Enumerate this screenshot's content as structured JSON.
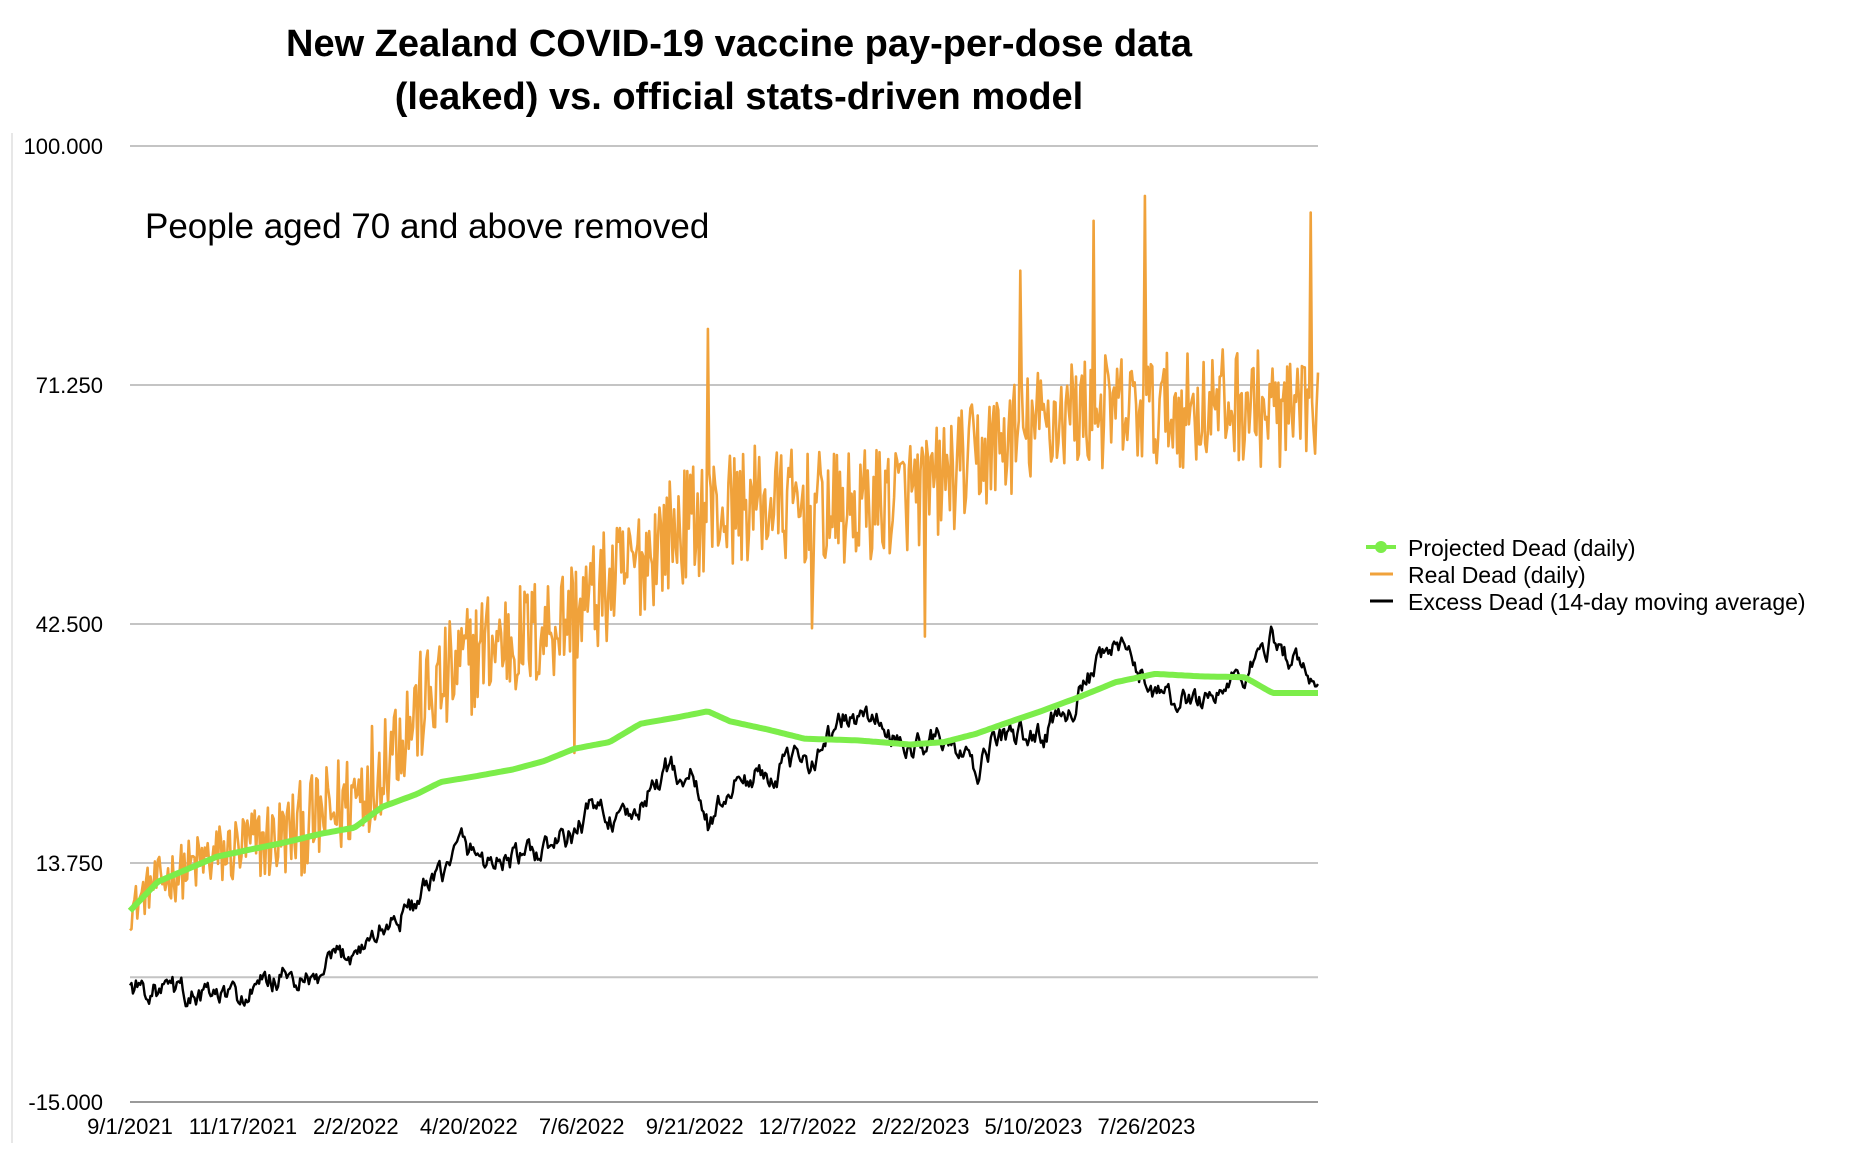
{
  "chart_data": {
    "type": "line",
    "title_lines": [
      "New Zealand COVID-19 vaccine pay-per-dose data",
      "(leaked) vs. official stats-driven model"
    ],
    "subtitle": "People aged 70 and above removed",
    "xlabel": "",
    "ylabel": "",
    "x_range": [
      "2021-09-01",
      "2023-11-20"
    ],
    "ylim": [
      -15,
      100
    ],
    "y_ticks": [
      -15,
      13.75,
      42.5,
      71.25,
      100
    ],
    "y_tick_labels": [
      "-15.000",
      "13.750",
      "42.500",
      "71.250",
      "100.000"
    ],
    "extra_gridline": 0,
    "x_tick_dates": [
      "2021-09-01",
      "2021-11-17",
      "2022-02-02",
      "2022-04-20",
      "2022-07-06",
      "2022-09-21",
      "2022-12-07",
      "2023-02-22",
      "2023-05-10",
      "2023-07-26"
    ],
    "x_tick_labels": [
      "9/1/2021",
      "11/17/2021",
      "2/2/2022",
      "4/20/2022",
      "7/6/2022",
      "9/21/2022",
      "12/7/2022",
      "2/22/2023",
      "5/10/2023",
      "7/26/2023"
    ],
    "grid": true,
    "legend_position": "right",
    "series": [
      {
        "name": "Projected Dead (daily)",
        "color": "#7ced4a",
        "style": "line-with-markers",
        "points": [
          [
            "2021-09-01",
            8
          ],
          [
            "2021-09-20",
            11.5
          ],
          [
            "2021-10-10",
            13
          ],
          [
            "2021-10-30",
            14.5
          ],
          [
            "2021-11-20",
            15.3
          ],
          [
            "2021-12-15",
            16.2
          ],
          [
            "2022-01-10",
            17.3
          ],
          [
            "2022-02-01",
            18
          ],
          [
            "2022-02-20",
            20.5
          ],
          [
            "2022-03-15",
            22
          ],
          [
            "2022-04-01",
            23.5
          ],
          [
            "2022-04-25",
            24.2
          ],
          [
            "2022-05-20",
            25
          ],
          [
            "2022-06-10",
            26
          ],
          [
            "2022-07-01",
            27.5
          ],
          [
            "2022-07-25",
            28.3
          ],
          [
            "2022-08-15",
            30.5
          ],
          [
            "2022-09-10",
            31.3
          ],
          [
            "2022-09-30",
            32
          ],
          [
            "2022-10-15",
            30.8
          ],
          [
            "2022-11-10",
            29.8
          ],
          [
            "2022-12-05",
            28.7
          ],
          [
            "2023-01-10",
            28.5
          ],
          [
            "2023-02-15",
            28
          ],
          [
            "2023-03-10",
            28.3
          ],
          [
            "2023-04-01",
            29.3
          ],
          [
            "2023-04-20",
            30.5
          ],
          [
            "2023-05-15",
            32
          ],
          [
            "2023-06-10",
            33.7
          ],
          [
            "2023-07-05",
            35.5
          ],
          [
            "2023-08-01",
            36.5
          ],
          [
            "2023-09-01",
            36.2
          ],
          [
            "2023-10-01",
            36.1
          ],
          [
            "2023-10-20",
            34.2
          ],
          [
            "2023-11-20",
            34.2
          ]
        ]
      },
      {
        "name": "Real Dead (daily)",
        "color": "#f0a23b",
        "style": "line",
        "trend": [
          [
            "2021-09-01",
            8
          ],
          [
            "2021-09-15",
            11
          ],
          [
            "2021-10-15",
            13.5
          ],
          [
            "2021-11-15",
            15.5
          ],
          [
            "2021-12-15",
            17
          ],
          [
            "2022-01-15",
            19.5
          ],
          [
            "2022-02-01",
            22
          ],
          [
            "2022-03-01",
            29
          ],
          [
            "2022-04-01",
            35
          ],
          [
            "2022-05-01",
            40
          ],
          [
            "2022-06-01",
            41
          ],
          [
            "2022-07-01",
            44
          ],
          [
            "2022-08-01",
            48
          ],
          [
            "2022-09-01",
            53
          ],
          [
            "2022-10-01",
            56
          ],
          [
            "2022-11-01",
            57
          ],
          [
            "2023-01-01",
            56
          ],
          [
            "2023-03-01",
            59
          ],
          [
            "2023-04-15",
            64
          ],
          [
            "2023-06-01",
            68
          ],
          [
            "2023-08-01",
            68
          ],
          [
            "2023-10-01",
            69
          ],
          [
            "2023-11-20",
            66
          ]
        ],
        "noise_amplitude": 7,
        "spikes": [
          [
            "2022-09-30",
            78
          ],
          [
            "2023-05-01",
            85
          ],
          [
            "2023-06-20",
            91
          ],
          [
            "2023-07-25",
            94
          ],
          [
            "2023-11-15",
            92
          ],
          [
            "2022-02-15",
            19
          ],
          [
            "2022-07-01",
            27
          ],
          [
            "2022-12-10",
            42
          ],
          [
            "2023-02-25",
            41
          ]
        ]
      },
      {
        "name": "Excess Dead (14-day moving average)",
        "color": "#000000",
        "style": "line",
        "trend": [
          [
            "2021-09-01",
            -1
          ],
          [
            "2021-10-01",
            -2
          ],
          [
            "2021-11-01",
            -2.5
          ],
          [
            "2021-11-20",
            -2.5
          ],
          [
            "2021-12-10",
            0
          ],
          [
            "2022-01-05",
            -1
          ],
          [
            "2022-01-20",
            2
          ],
          [
            "2022-02-15",
            5
          ],
          [
            "2022-03-15",
            9
          ],
          [
            "2022-04-01",
            12
          ],
          [
            "2022-04-15",
            16
          ],
          [
            "2022-05-01",
            14
          ],
          [
            "2022-06-01",
            14.5
          ],
          [
            "2022-07-01",
            17
          ],
          [
            "2022-07-15",
            21
          ],
          [
            "2022-08-05",
            18
          ],
          [
            "2022-09-01",
            25
          ],
          [
            "2022-09-20",
            24
          ],
          [
            "2022-10-01",
            18
          ],
          [
            "2022-10-15",
            23
          ],
          [
            "2022-11-15",
            25
          ],
          [
            "2022-12-07",
            26
          ],
          [
            "2023-01-01",
            31
          ],
          [
            "2023-01-25",
            31
          ],
          [
            "2023-02-10",
            27
          ],
          [
            "2023-03-01",
            29
          ],
          [
            "2023-03-20",
            27
          ],
          [
            "2023-04-01",
            24
          ],
          [
            "2023-04-15",
            29
          ],
          [
            "2023-05-15",
            29
          ],
          [
            "2023-06-15",
            35
          ],
          [
            "2023-07-05",
            40
          ],
          [
            "2023-07-20",
            37
          ],
          [
            "2023-08-10",
            33
          ],
          [
            "2023-09-10",
            34
          ],
          [
            "2023-10-05",
            37
          ],
          [
            "2023-10-20",
            41
          ],
          [
            "2023-11-10",
            37
          ],
          [
            "2023-11-20",
            34
          ]
        ],
        "noise_amplitude": 1.2
      }
    ]
  }
}
